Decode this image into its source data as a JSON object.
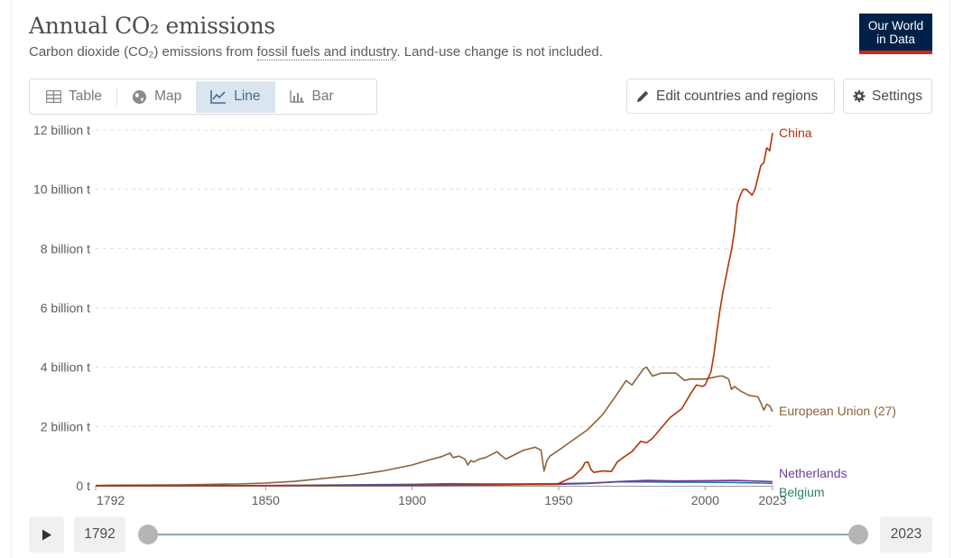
{
  "header": {
    "title": "Annual CO₂ emissions",
    "subtitle_pre": "Carbon dioxide (CO₂) emissions from ",
    "subtitle_link": "fossil fuels and industry",
    "subtitle_post": ". Land-use change is not included.",
    "logo_line1": "Our World",
    "logo_line2": "in Data"
  },
  "tabs": [
    {
      "label": "Table",
      "icon": "table-icon",
      "active": false
    },
    {
      "label": "Map",
      "icon": "globe-icon",
      "active": false
    },
    {
      "label": "Line",
      "icon": "line-chart-icon",
      "active": true
    },
    {
      "label": "Bar",
      "icon": "bar-chart-icon",
      "active": false
    }
  ],
  "controls": {
    "edit_label": "Edit countries and regions",
    "settings_label": "Settings"
  },
  "timeline": {
    "start_year": "1792",
    "end_year": "2023"
  },
  "colors": {
    "china": "#b13507",
    "eu": "#8c6239",
    "netherlands": "#6d3e91",
    "belgium": "#286bbb",
    "belgium_label": "#2c8465",
    "grid": "#dddddd",
    "axis_text": "#5b5b5b"
  },
  "chart_data": {
    "type": "line",
    "title": "Annual CO₂ emissions",
    "xlabel": "",
    "ylabel": "",
    "xlim": [
      1792,
      2023
    ],
    "ylim": [
      0,
      12
    ],
    "y_unit": "billion t",
    "xticks": [
      "1792",
      "1850",
      "1900",
      "1950",
      "2000",
      "2023"
    ],
    "yticks": [
      "0 t",
      "2 billion t",
      "4 billion t",
      "6 billion t",
      "8 billion t",
      "10 billion t",
      "12 billion t"
    ],
    "series": [
      {
        "name": "China",
        "color": "#b13507",
        "x": [
          1792,
          1900,
          1949,
          1950,
          1955,
          1958,
          1959,
          1960,
          1961,
          1962,
          1965,
          1968,
          1970,
          1972,
          1975,
          1978,
          1980,
          1982,
          1985,
          1988,
          1990,
          1992,
          1995,
          1997,
          1999,
          2000,
          2002,
          2003,
          2004,
          2005,
          2006,
          2007,
          2008,
          2009,
          2010,
          2011,
          2012,
          2013,
          2014,
          2015,
          2016,
          2017,
          2018,
          2019,
          2020,
          2021,
          2022,
          2023
        ],
        "values": [
          0,
          0.01,
          0.05,
          0.08,
          0.3,
          0.6,
          0.78,
          0.8,
          0.55,
          0.45,
          0.5,
          0.48,
          0.8,
          0.95,
          1.15,
          1.5,
          1.45,
          1.6,
          1.95,
          2.3,
          2.45,
          2.6,
          3.1,
          3.4,
          3.35,
          3.4,
          3.85,
          4.45,
          5.2,
          5.9,
          6.5,
          7.0,
          7.5,
          7.95,
          8.6,
          9.5,
          9.8,
          10.0,
          10.0,
          9.9,
          9.8,
          10.0,
          10.4,
          10.8,
          10.9,
          11.4,
          11.3,
          11.9
        ]
      },
      {
        "name": "European Union (27)",
        "color": "#8c6239",
        "x": [
          1792,
          1800,
          1820,
          1840,
          1850,
          1860,
          1870,
          1880,
          1890,
          1900,
          1905,
          1910,
          1913,
          1914,
          1916,
          1918,
          1919,
          1920,
          1921,
          1923,
          1925,
          1929,
          1930,
          1932,
          1935,
          1938,
          1940,
          1942,
          1944,
          1945,
          1946,
          1947,
          1950,
          1955,
          1960,
          1965,
          1970,
          1973,
          1975,
          1979,
          1980,
          1982,
          1985,
          1990,
          1993,
          1995,
          2000,
          2005,
          2006,
          2008,
          2009,
          2010,
          2012,
          2015,
          2018,
          2019,
          2020,
          2021,
          2022,
          2023
        ],
        "values": [
          0.01,
          0.02,
          0.03,
          0.06,
          0.09,
          0.15,
          0.25,
          0.35,
          0.5,
          0.7,
          0.85,
          0.98,
          1.1,
          0.95,
          1.0,
          0.9,
          0.7,
          0.85,
          0.8,
          0.9,
          0.95,
          1.15,
          1.05,
          0.9,
          1.05,
          1.2,
          1.25,
          1.3,
          1.2,
          0.5,
          0.85,
          1.0,
          1.2,
          1.55,
          1.9,
          2.4,
          3.1,
          3.55,
          3.4,
          3.95,
          4.0,
          3.7,
          3.8,
          3.8,
          3.55,
          3.6,
          3.6,
          3.7,
          3.7,
          3.6,
          3.25,
          3.35,
          3.2,
          3.05,
          3.0,
          2.8,
          2.55,
          2.75,
          2.7,
          2.5
        ]
      },
      {
        "name": "Netherlands",
        "color": "#6d3e91",
        "x": [
          1792,
          1850,
          1900,
          1930,
          1950,
          1960,
          1970,
          1980,
          1990,
          2000,
          2010,
          2020,
          2023
        ],
        "values": [
          0,
          0.005,
          0.02,
          0.03,
          0.05,
          0.08,
          0.14,
          0.18,
          0.16,
          0.17,
          0.18,
          0.15,
          0.14
        ]
      },
      {
        "name": "Belgium",
        "color": "#286bbb",
        "x": [
          1792,
          1850,
          1900,
          1913,
          1930,
          1950,
          1960,
          1970,
          1980,
          1990,
          2000,
          2010,
          2020,
          2023
        ],
        "values": [
          0,
          0.01,
          0.05,
          0.07,
          0.06,
          0.07,
          0.09,
          0.13,
          0.13,
          0.12,
          0.12,
          0.11,
          0.09,
          0.08
        ]
      }
    ],
    "labels": [
      {
        "series": "China",
        "text": "China"
      },
      {
        "series": "European Union (27)",
        "text": "European Union (27)"
      },
      {
        "series": "Netherlands",
        "text": "Netherlands"
      },
      {
        "series": "Belgium",
        "text": "Belgium"
      }
    ]
  }
}
